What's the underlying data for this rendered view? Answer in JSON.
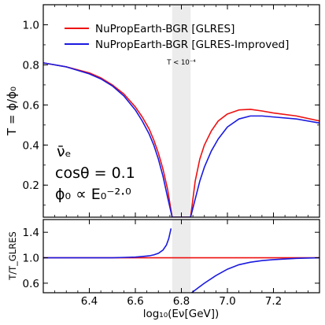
{
  "chart_data": [
    {
      "type": "line",
      "panel": "main",
      "xlim": [
        6.2,
        7.4
      ],
      "ylim": [
        0.04,
        1.1
      ],
      "ylabel": "T = ϕ/ϕ₀",
      "xticks": [
        6.4,
        6.6,
        6.8,
        7.0,
        7.2
      ],
      "yticks": [
        0.2,
        0.4,
        0.6,
        0.8,
        1.0
      ],
      "ytick_labels": [
        "0.2",
        "0.4",
        "0.6",
        "0.8",
        "1.0"
      ],
      "legend_position": "top-right",
      "shaded_band": {
        "x": [
          6.76,
          6.84
        ],
        "label": "T < 10⁻⁴",
        "color": "#ececec"
      },
      "annotations": {
        "flavor": "ν̄ₑ",
        "angle": "cosθ = 0.1",
        "flux": "ϕ₀ ∝ E₀⁻²·⁰"
      },
      "series": [
        {
          "name": "NuPropEarth-BGR [GLRES]",
          "color": "#ee1111",
          "x": [
            6.2,
            6.3,
            6.4,
            6.45,
            6.5,
            6.55,
            6.6,
            6.63,
            6.66,
            6.68,
            6.7,
            6.72,
            6.74,
            6.76,
            6.84,
            6.86,
            6.88,
            6.9,
            6.93,
            6.96,
            7.0,
            7.05,
            7.1,
            7.15,
            7.2,
            7.3,
            7.4
          ],
          "y": [
            0.81,
            0.79,
            0.76,
            0.735,
            0.7,
            0.655,
            0.59,
            0.54,
            0.48,
            0.425,
            0.36,
            0.28,
            0.18,
            0.04,
            0.04,
            0.22,
            0.33,
            0.4,
            0.47,
            0.52,
            0.555,
            0.575,
            0.578,
            0.57,
            0.56,
            0.545,
            0.52
          ]
        },
        {
          "name": "NuPropEarth-BGR [GLRES-Improved]",
          "color": "#1a1ae0",
          "x": [
            6.2,
            6.3,
            6.4,
            6.45,
            6.5,
            6.55,
            6.6,
            6.63,
            6.66,
            6.68,
            6.7,
            6.72,
            6.74,
            6.76,
            6.84,
            6.86,
            6.88,
            6.9,
            6.93,
            6.96,
            7.0,
            7.05,
            7.1,
            7.15,
            7.2,
            7.3,
            7.4
          ],
          "y": [
            0.81,
            0.79,
            0.755,
            0.73,
            0.695,
            0.645,
            0.575,
            0.52,
            0.455,
            0.4,
            0.33,
            0.245,
            0.14,
            0.04,
            0.04,
            0.13,
            0.22,
            0.29,
            0.37,
            0.43,
            0.49,
            0.53,
            0.545,
            0.545,
            0.54,
            0.53,
            0.51
          ]
        }
      ]
    },
    {
      "type": "line",
      "panel": "ratio",
      "xlim": [
        6.2,
        7.4
      ],
      "ylim": [
        0.45,
        1.6
      ],
      "xlabel": "log₁₀(Eν[GeV])",
      "ylabel": "T/T_GLRES",
      "xticks": [
        6.4,
        6.6,
        6.8,
        7.0,
        7.2
      ],
      "xtick_labels": [
        "6.4",
        "6.6",
        "6.8",
        "7.0",
        "7.2"
      ],
      "yticks": [
        0.6,
        1.0,
        1.4
      ],
      "ytick_labels": [
        "0.6",
        "1.0",
        "1.4"
      ],
      "shaded_band": {
        "x": [
          6.76,
          6.84
        ],
        "color": "#ececec"
      },
      "series": [
        {
          "name": "GLRES",
          "color": "#ee1111",
          "x": [
            6.2,
            7.4
          ],
          "y": [
            1.0,
            1.0
          ]
        },
        {
          "name": "GLRES-Improved",
          "color": "#1a1ae0",
          "x": [
            6.2,
            6.4,
            6.5,
            6.55,
            6.6,
            6.63,
            6.66,
            6.68,
            6.7,
            6.72,
            6.735,
            6.745,
            6.755
          ],
          "y": [
            1.0,
            1.0,
            1.0,
            1.005,
            1.01,
            1.02,
            1.03,
            1.045,
            1.07,
            1.12,
            1.2,
            1.3,
            1.46
          ],
          "x2": [
            6.845,
            6.87,
            6.9,
            6.95,
            7.0,
            7.05,
            7.1,
            7.15,
            7.2,
            7.3,
            7.4
          ],
          "y2": [
            0.45,
            0.52,
            0.6,
            0.72,
            0.82,
            0.89,
            0.93,
            0.955,
            0.97,
            0.99,
            1.0
          ]
        }
      ]
    }
  ]
}
